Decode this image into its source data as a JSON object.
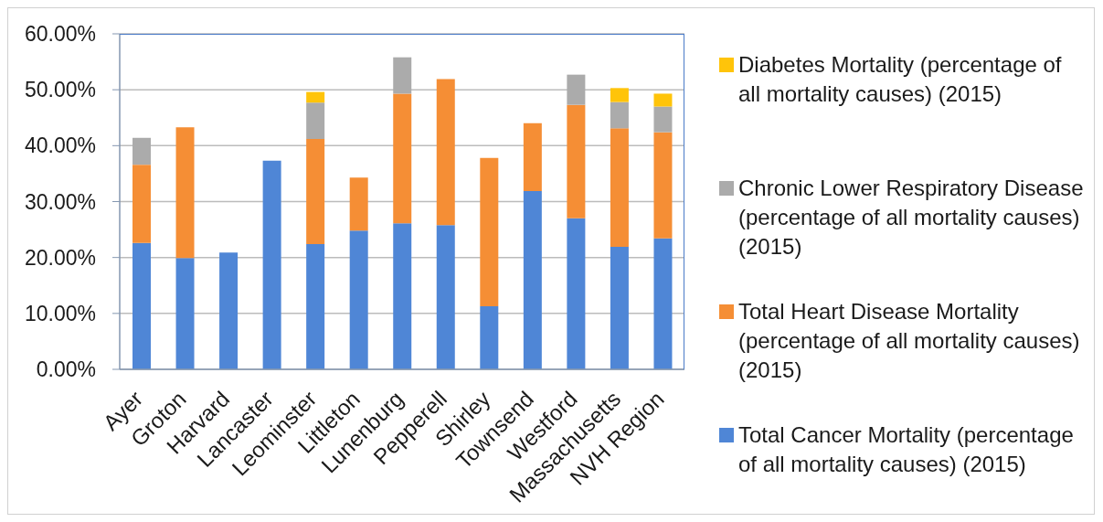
{
  "chart_data": {
    "type": "bar",
    "stacked": true,
    "categories": [
      "Ayer",
      "Groton",
      "Harvard",
      "Lancaster",
      "Leominster",
      "Littleton",
      "Lunenburg",
      "Pepperell",
      "Shirley",
      "Townsend",
      "Westford",
      "Massachusetts",
      "NVH Region"
    ],
    "series": [
      {
        "name": "Total Cancer Mortality (percentage of all mortality causes) (2015)",
        "color": "#4f86d6",
        "values": [
          22.6,
          19.9,
          20.9,
          37.3,
          22.4,
          24.8,
          26.1,
          25.8,
          11.3,
          31.9,
          27.0,
          21.9,
          23.4
        ]
      },
      {
        "name": "Total Heart Disease Mortality (percentage of all mortality causes) (2015)",
        "color": "#f58e35",
        "values": [
          14.0,
          23.4,
          null,
          null,
          18.8,
          9.5,
          23.2,
          26.1,
          26.5,
          12.1,
          20.3,
          21.2,
          19.0
        ]
      },
      {
        "name": "Chronic Lower Respiratory Disease (percentage of all mortality causes) (2015)",
        "color": "#ababab",
        "values": [
          4.8,
          null,
          null,
          null,
          6.5,
          null,
          6.5,
          null,
          null,
          null,
          5.4,
          4.7,
          4.6
        ]
      },
      {
        "name": "Diabetes Mortality (percentage of all mortality causes) (2015)",
        "color": "#ffc40a",
        "values": [
          null,
          null,
          null,
          null,
          1.9,
          null,
          null,
          null,
          null,
          null,
          null,
          2.5,
          2.3
        ]
      }
    ],
    "ylim": [
      0,
      60
    ],
    "yticks": [
      {
        "value": 0,
        "label": "0.00%"
      },
      {
        "value": 10,
        "label": "10.00%"
      },
      {
        "value": 20,
        "label": "20.00%"
      },
      {
        "value": 30,
        "label": "30.00%"
      },
      {
        "value": 40,
        "label": "40.00%"
      },
      {
        "value": 50,
        "label": "50.00%"
      },
      {
        "value": 60,
        "label": "60.00%"
      }
    ],
    "grid": "y",
    "legend": "right"
  }
}
